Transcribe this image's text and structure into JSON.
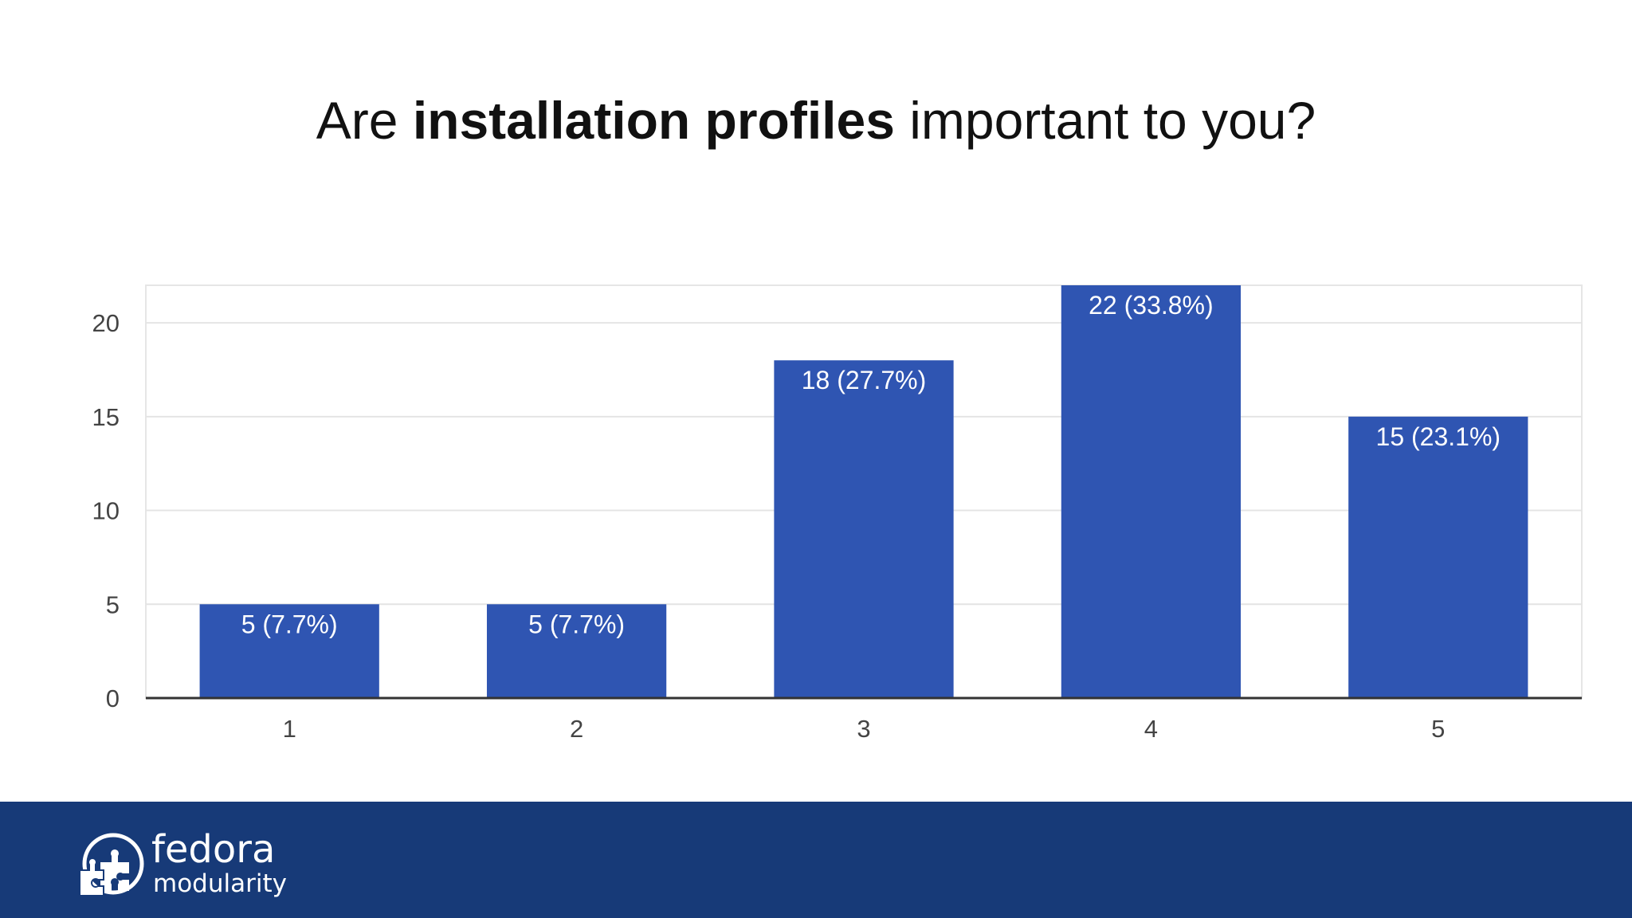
{
  "slide": {
    "title_pre": "Are ",
    "title_bold": "installation profiles",
    "title_post": " important to you?"
  },
  "chart_data": {
    "type": "bar",
    "categories": [
      "1",
      "2",
      "3",
      "4",
      "5"
    ],
    "values": [
      5,
      5,
      18,
      22,
      15
    ],
    "data_labels": [
      "5 (7.7%)",
      "5 (7.7%)",
      "18 (27.7%)",
      "22 (33.8%)",
      "15 (23.1%)"
    ],
    "ylim": [
      0,
      22
    ],
    "yticks": [
      0,
      5,
      10,
      15,
      20
    ],
    "ytick_labels": [
      "0",
      "5",
      "10",
      "15",
      "20"
    ],
    "grid": true,
    "legend": "none",
    "bar_color": "#2f55b2",
    "label_color": "#ffffff"
  },
  "footer": {
    "brand": "fedora",
    "subtitle": "modularity",
    "logo_icon": "fedora-puzzle-logo-icon",
    "background_color": "#173a78"
  }
}
